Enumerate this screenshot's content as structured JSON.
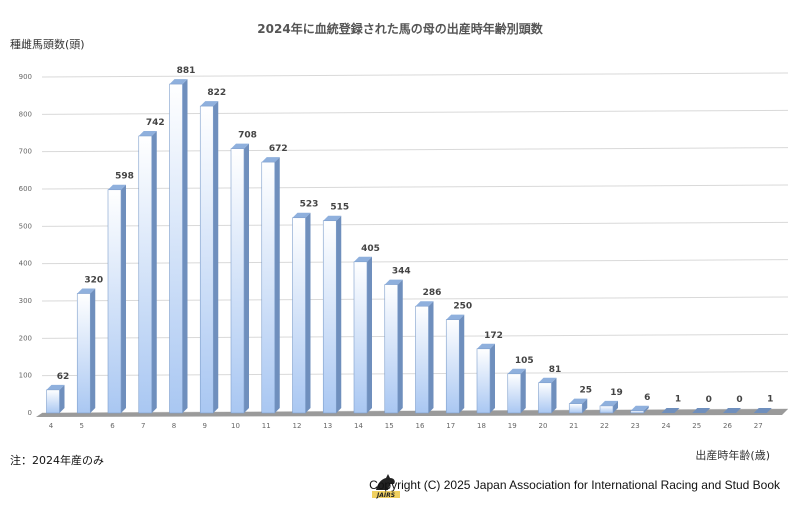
{
  "chart_data": {
    "type": "bar",
    "title": "2024年に血統登録された馬の母の出産時年齢別頭数",
    "ylabel": "種雌馬頭数(頭)",
    "xlabel": "出産時年齢(歳)",
    "categories": [
      "4",
      "5",
      "6",
      "7",
      "8",
      "9",
      "10",
      "11",
      "12",
      "13",
      "14",
      "15",
      "16",
      "17",
      "18",
      "19",
      "20",
      "21",
      "22",
      "23",
      "24",
      "25",
      "26",
      "27"
    ],
    "values": [
      62,
      320,
      598,
      742,
      881,
      822,
      708,
      672,
      523,
      515,
      405,
      344,
      286,
      250,
      172,
      105,
      81,
      25,
      19,
      6,
      1,
      0,
      0,
      1
    ],
    "data_labels": [
      "62",
      "320",
      "598",
      "742",
      "881",
      "822",
      "708",
      "672",
      "523",
      "515",
      "405",
      "344",
      "286",
      "250",
      "172",
      "105",
      "81",
      "25",
      "19",
      "6",
      "1",
      "0",
      "0",
      "1"
    ],
    "yticks": [
      "0",
      "100",
      "200",
      "300",
      "400",
      "500",
      "600",
      "700",
      "800",
      "900"
    ],
    "ylim": [
      0,
      900
    ],
    "grid": true,
    "legend": "none",
    "colors": {
      "bar_light": "#ffffff",
      "bar_dark": "#a9c7f2",
      "bar_side": "#6f8fbd",
      "floor": "#9a9a9a",
      "grid": "#d9d9d9"
    }
  },
  "note": "注：2024年産のみ",
  "copyright": "Copyright (C) 2025 Japan Association for International Racing and Stud Book",
  "logo_icon": "horse-logo-icon"
}
